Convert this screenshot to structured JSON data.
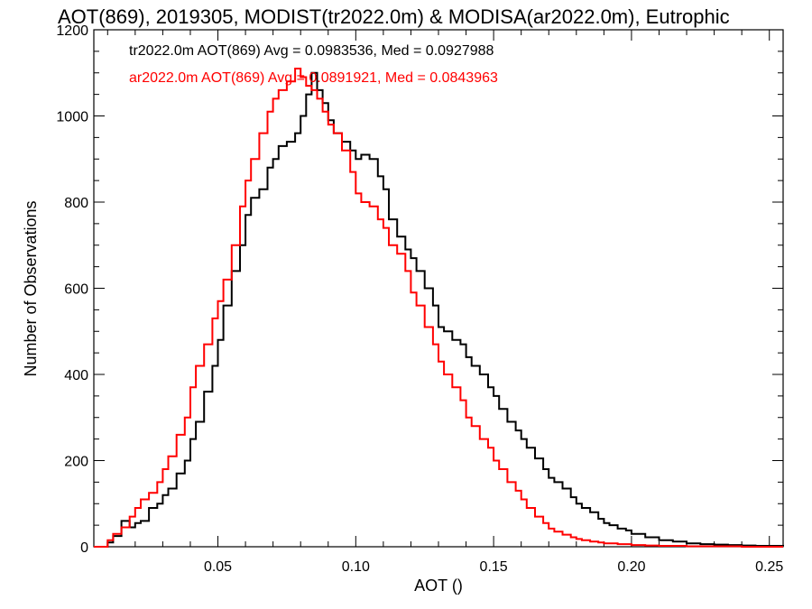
{
  "chart_data": {
    "type": "line",
    "style": "step-histogram",
    "title": "AOT(869), 2019305, MODIST(tr2022.0m) & MODISA(ar2022.0m), Eutrophic",
    "xlabel": "AOT ()",
    "ylabel": "Number of Observations",
    "xlim": [
      0.005,
      0.255
    ],
    "ylim": [
      0,
      1200
    ],
    "x_ticks": [
      0.05,
      0.1,
      0.15,
      0.2,
      0.25
    ],
    "x_tick_labels": [
      "0.05",
      "0.10",
      "0.15",
      "0.20",
      "0.25"
    ],
    "y_ticks": [
      0,
      200,
      400,
      600,
      800,
      1000,
      1200
    ],
    "y_tick_labels": [
      "0",
      "200",
      "400",
      "600",
      "800",
      "1000",
      "1200"
    ],
    "grid": false,
    "series": [
      {
        "label": "tr2022.0m AOT(869) Avg = 0.0983536, Med = 0.0927988",
        "color": "#000000",
        "points": [
          [
            0.005,
            0
          ],
          [
            0.01,
            10
          ],
          [
            0.012,
            25
          ],
          [
            0.015,
            60
          ],
          [
            0.018,
            45
          ],
          [
            0.02,
            55
          ],
          [
            0.022,
            60
          ],
          [
            0.025,
            90
          ],
          [
            0.028,
            100
          ],
          [
            0.03,
            120
          ],
          [
            0.032,
            135
          ],
          [
            0.035,
            170
          ],
          [
            0.038,
            200
          ],
          [
            0.04,
            250
          ],
          [
            0.042,
            290
          ],
          [
            0.045,
            360
          ],
          [
            0.048,
            420
          ],
          [
            0.05,
            480
          ],
          [
            0.052,
            560
          ],
          [
            0.055,
            640
          ],
          [
            0.058,
            700
          ],
          [
            0.06,
            770
          ],
          [
            0.062,
            810
          ],
          [
            0.065,
            830
          ],
          [
            0.068,
            880
          ],
          [
            0.07,
            900
          ],
          [
            0.072,
            930
          ],
          [
            0.075,
            940
          ],
          [
            0.078,
            960
          ],
          [
            0.08,
            1000
          ],
          [
            0.082,
            1050
          ],
          [
            0.084,
            1100
          ],
          [
            0.086,
            1060
          ],
          [
            0.088,
            1030
          ],
          [
            0.09,
            990
          ],
          [
            0.092,
            960
          ],
          [
            0.095,
            940
          ],
          [
            0.098,
            920
          ],
          [
            0.1,
            900
          ],
          [
            0.102,
            910
          ],
          [
            0.105,
            900
          ],
          [
            0.108,
            860
          ],
          [
            0.11,
            830
          ],
          [
            0.112,
            760
          ],
          [
            0.115,
            720
          ],
          [
            0.118,
            690
          ],
          [
            0.12,
            670
          ],
          [
            0.122,
            640
          ],
          [
            0.125,
            600
          ],
          [
            0.128,
            560
          ],
          [
            0.13,
            510
          ],
          [
            0.132,
            500
          ],
          [
            0.135,
            480
          ],
          [
            0.138,
            470
          ],
          [
            0.14,
            440
          ],
          [
            0.142,
            420
          ],
          [
            0.145,
            400
          ],
          [
            0.148,
            370
          ],
          [
            0.15,
            350
          ],
          [
            0.152,
            320
          ],
          [
            0.155,
            290
          ],
          [
            0.158,
            270
          ],
          [
            0.16,
            250
          ],
          [
            0.162,
            230
          ],
          [
            0.165,
            205
          ],
          [
            0.168,
            180
          ],
          [
            0.17,
            160
          ],
          [
            0.172,
            150
          ],
          [
            0.175,
            135
          ],
          [
            0.178,
            115
          ],
          [
            0.18,
            100
          ],
          [
            0.182,
            90
          ],
          [
            0.185,
            80
          ],
          [
            0.188,
            65
          ],
          [
            0.19,
            55
          ],
          [
            0.192,
            50
          ],
          [
            0.195,
            42
          ],
          [
            0.198,
            38
          ],
          [
            0.2,
            30
          ],
          [
            0.205,
            22
          ],
          [
            0.21,
            15
          ],
          [
            0.215,
            12
          ],
          [
            0.22,
            8
          ],
          [
            0.225,
            6
          ],
          [
            0.23,
            5
          ],
          [
            0.235,
            4
          ],
          [
            0.24,
            3
          ],
          [
            0.245,
            2
          ],
          [
            0.25,
            2
          ],
          [
            0.255,
            1
          ]
        ]
      },
      {
        "label": "ar2022.0m AOT(869) Avg = 0.0891921, Med = 0.0843963",
        "color": "#ff0000",
        "points": [
          [
            0.005,
            0
          ],
          [
            0.01,
            15
          ],
          [
            0.012,
            30
          ],
          [
            0.015,
            45
          ],
          [
            0.018,
            70
          ],
          [
            0.02,
            90
          ],
          [
            0.022,
            110
          ],
          [
            0.025,
            125
          ],
          [
            0.028,
            150
          ],
          [
            0.03,
            180
          ],
          [
            0.032,
            210
          ],
          [
            0.035,
            260
          ],
          [
            0.038,
            300
          ],
          [
            0.04,
            370
          ],
          [
            0.042,
            420
          ],
          [
            0.045,
            470
          ],
          [
            0.048,
            530
          ],
          [
            0.05,
            570
          ],
          [
            0.052,
            620
          ],
          [
            0.055,
            700
          ],
          [
            0.058,
            790
          ],
          [
            0.06,
            850
          ],
          [
            0.062,
            900
          ],
          [
            0.065,
            960
          ],
          [
            0.068,
            1010
          ],
          [
            0.07,
            1040
          ],
          [
            0.072,
            1060
          ],
          [
            0.075,
            1080
          ],
          [
            0.078,
            1110
          ],
          [
            0.08,
            1090
          ],
          [
            0.082,
            1070
          ],
          [
            0.084,
            1060
          ],
          [
            0.086,
            1040
          ],
          [
            0.088,
            1010
          ],
          [
            0.09,
            980
          ],
          [
            0.092,
            960
          ],
          [
            0.095,
            920
          ],
          [
            0.098,
            870
          ],
          [
            0.1,
            820
          ],
          [
            0.102,
            800
          ],
          [
            0.105,
            790
          ],
          [
            0.108,
            760
          ],
          [
            0.11,
            740
          ],
          [
            0.112,
            700
          ],
          [
            0.115,
            680
          ],
          [
            0.118,
            640
          ],
          [
            0.12,
            590
          ],
          [
            0.122,
            560
          ],
          [
            0.125,
            510
          ],
          [
            0.128,
            470
          ],
          [
            0.13,
            430
          ],
          [
            0.132,
            400
          ],
          [
            0.135,
            370
          ],
          [
            0.138,
            340
          ],
          [
            0.14,
            300
          ],
          [
            0.142,
            280
          ],
          [
            0.145,
            250
          ],
          [
            0.148,
            230
          ],
          [
            0.15,
            200
          ],
          [
            0.152,
            180
          ],
          [
            0.155,
            150
          ],
          [
            0.158,
            130
          ],
          [
            0.16,
            110
          ],
          [
            0.162,
            90
          ],
          [
            0.165,
            70
          ],
          [
            0.168,
            55
          ],
          [
            0.17,
            42
          ],
          [
            0.172,
            35
          ],
          [
            0.175,
            28
          ],
          [
            0.178,
            22
          ],
          [
            0.18,
            18
          ],
          [
            0.182,
            15
          ],
          [
            0.185,
            12
          ],
          [
            0.188,
            10
          ],
          [
            0.19,
            8
          ],
          [
            0.195,
            6
          ],
          [
            0.2,
            4
          ],
          [
            0.205,
            3
          ],
          [
            0.21,
            2
          ],
          [
            0.22,
            1
          ],
          [
            0.23,
            1
          ],
          [
            0.24,
            0
          ],
          [
            0.255,
            0
          ]
        ]
      }
    ]
  }
}
